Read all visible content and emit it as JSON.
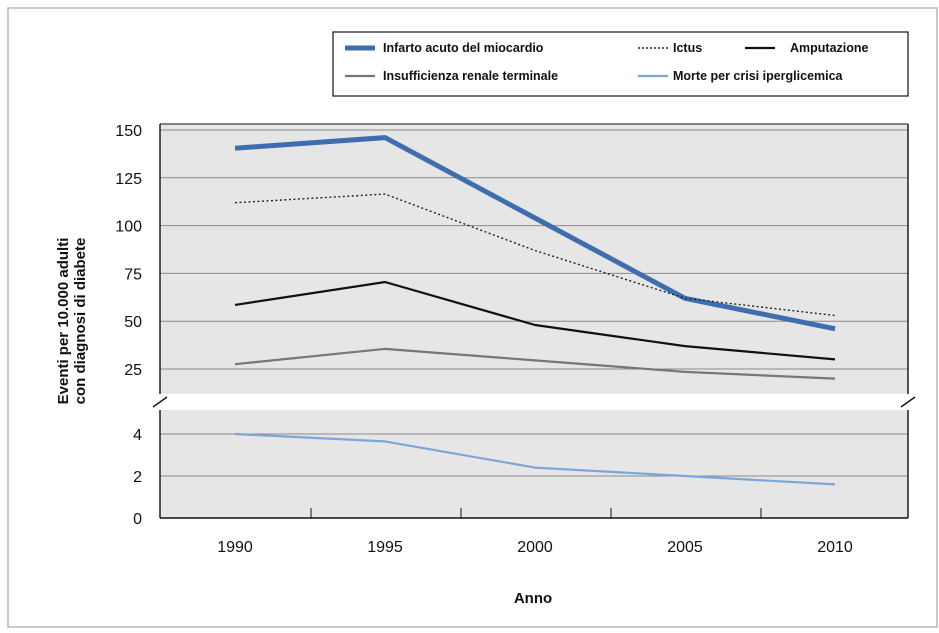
{
  "chart_data": {
    "type": "line",
    "xlabel": "Anno",
    "ylabel_lines": [
      "Eventi per 10.000 adulti",
      "con diagnosi di diabete"
    ],
    "categories": [
      "1990",
      "1995",
      "2000",
      "2005",
      "2010"
    ],
    "y_axis_upper": {
      "ticks": [
        25,
        50,
        75,
        100,
        125,
        150
      ],
      "range": [
        15,
        150
      ]
    },
    "y_axis_lower": {
      "ticks": [
        0,
        2,
        4
      ],
      "range": [
        0,
        4.5
      ]
    },
    "broken_axis": true,
    "grid": true,
    "legend_position": "top-right",
    "series": [
      {
        "name": "Infarto acuto del miocardio",
        "values": [
          140.5,
          146,
          104,
          62,
          46
        ],
        "panel": "upper",
        "color": "#3e6eae",
        "style": "solid",
        "width": 5
      },
      {
        "name": "Ictus",
        "values": [
          112,
          116.5,
          87,
          62,
          53
        ],
        "panel": "upper",
        "color": "#222222",
        "style": "dotted",
        "width": 1.4
      },
      {
        "name": "Amputazione",
        "values": [
          58.5,
          70.5,
          48,
          37,
          30
        ],
        "panel": "upper",
        "color": "#111111",
        "style": "solid",
        "width": 2.2
      },
      {
        "name": "Insufficienza renale terminale",
        "values": [
          27.5,
          35.5,
          29.5,
          23.5,
          20
        ],
        "panel": "upper",
        "color": "#777777",
        "style": "solid",
        "width": 2.2
      },
      {
        "name": "Morte per crisi iperglicemica",
        "values": [
          4.0,
          3.65,
          2.4,
          2.0,
          1.6
        ],
        "panel": "lower",
        "color": "#7ba6d7",
        "style": "solid",
        "width": 2.2
      }
    ]
  }
}
